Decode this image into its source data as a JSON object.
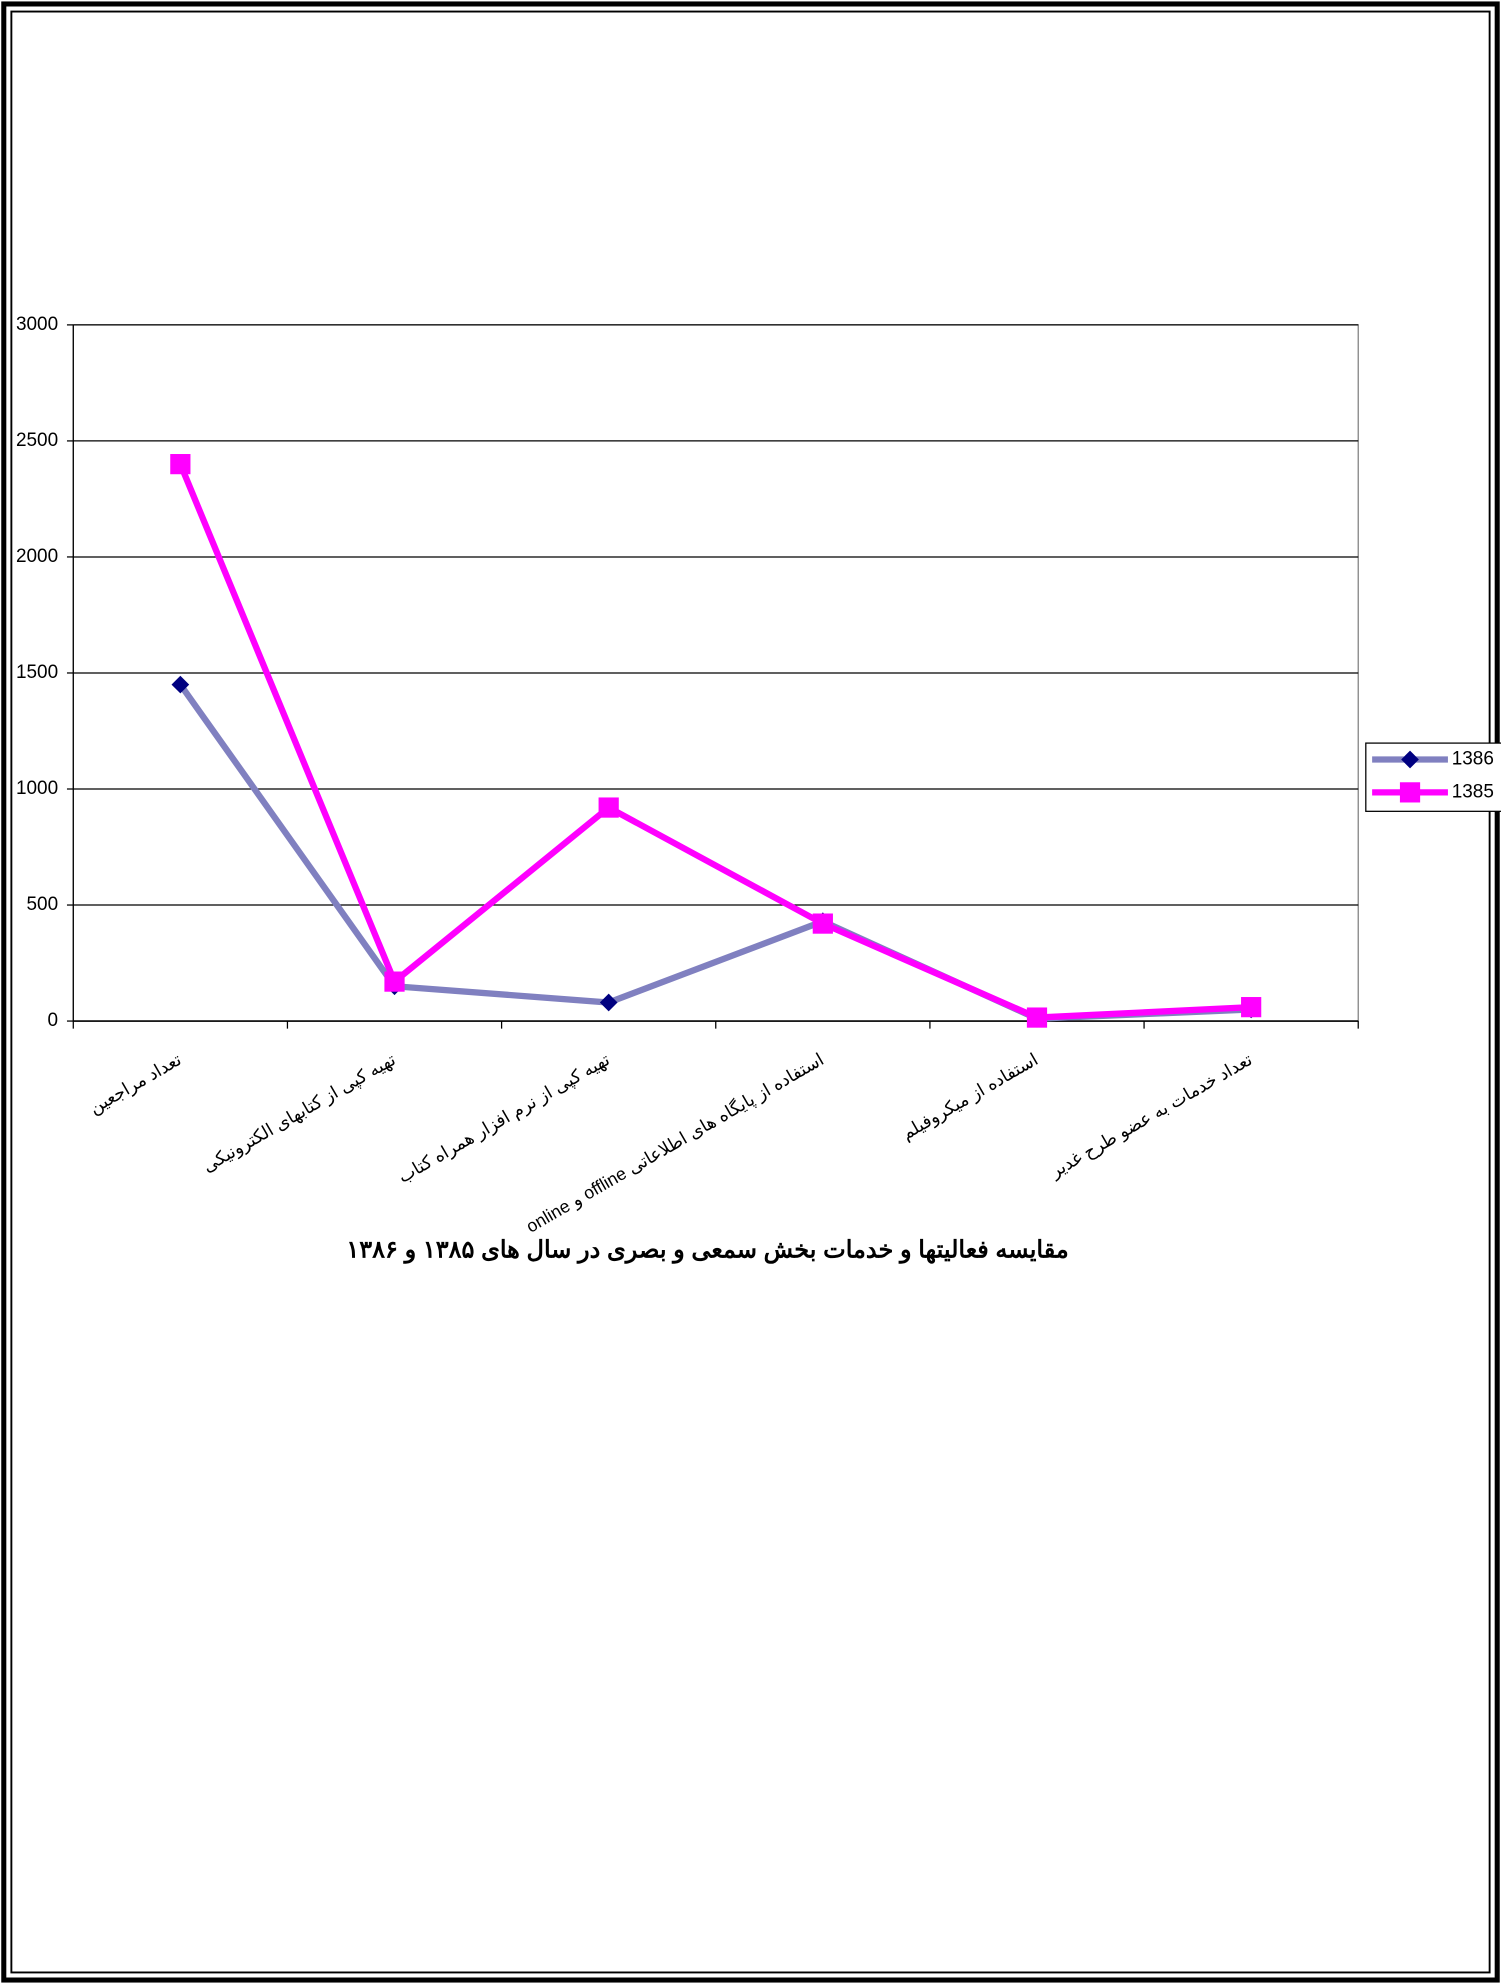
{
  "chart_data": {
    "type": "line",
    "title": "مقايسه فعاليتها و خدمات بخش سمعی و بصری در سال های ۱۳۸۵ و ۱۳۸۶",
    "categories": [
      "تعداد مراجعين",
      "تهيه كپی از كتابهای الكترونيكی",
      "تهيه كپی از نرم افزار همراه كتاب",
      "استفاده از پايگاه های اطلاعاتی offline و online",
      "استفاده از ميكروفيلم",
      "تعداد خدمات به عضو طرح غدير"
    ],
    "series": [
      {
        "name": "1386",
        "color": "#8080c0",
        "marker": "diamond",
        "marker_color": "#000080",
        "values": [
          1450,
          150,
          80,
          430,
          10,
          50
        ]
      },
      {
        "name": "1385",
        "color": "#ff00ff",
        "marker": "square",
        "marker_color": "#ff00ff",
        "values": [
          2400,
          170,
          920,
          420,
          15,
          60
        ]
      }
    ],
    "ylim": [
      0,
      3000
    ],
    "yticks": [
      0,
      500,
      1000,
      1500,
      2000,
      2500,
      3000
    ],
    "grid": true,
    "legend": "right"
  }
}
